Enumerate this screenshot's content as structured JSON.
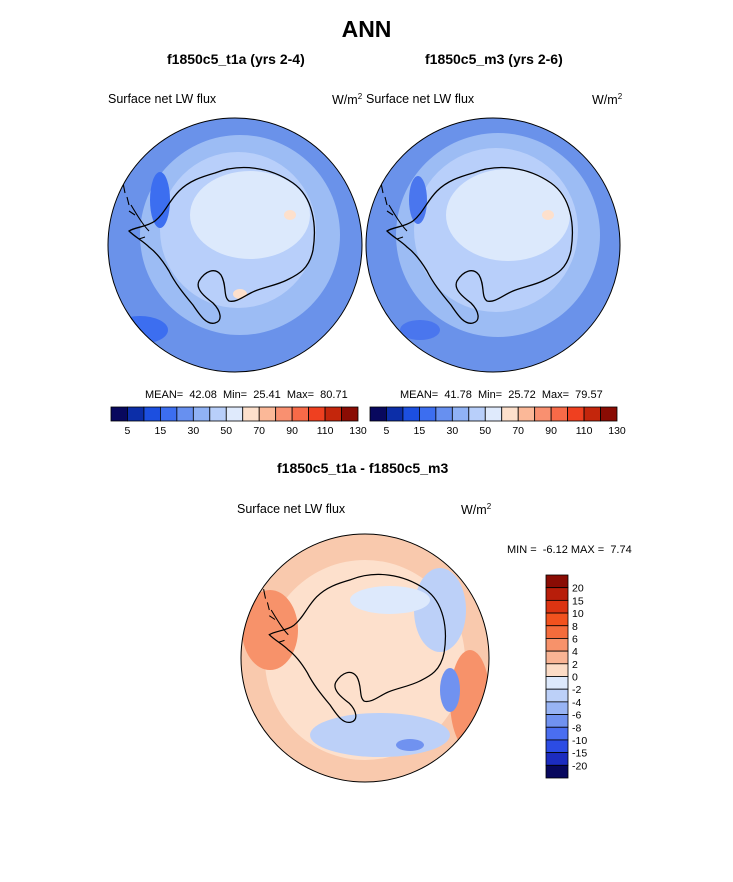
{
  "main_title": "ANN",
  "panels": [
    {
      "title": "f1850c5_t1a (yrs 2-4)",
      "variable": "Surface net LW flux",
      "units_base": "W/m",
      "units_exp": "2",
      "stats": "MEAN=  42.08  Min=  25.41  Max=  80.71"
    },
    {
      "title": "f1850c5_m3 (yrs 2-6)",
      "variable": "Surface net LW flux",
      "units_base": "W/m",
      "units_exp": "2",
      "stats": "MEAN=  41.78  Min=  25.72  Max=  79.57"
    }
  ],
  "diff": {
    "title": "f1850c5_t1a - f1850c5_m3",
    "variable": "Surface net LW flux",
    "units_base": "W/m",
    "units_exp": "2",
    "stats": "MIN =  -6.12 MAX =  7.74"
  },
  "colorbar_h": {
    "colors": [
      "#08085e",
      "#0c2ea8",
      "#1c4fe0",
      "#3c6ef0",
      "#6790f0",
      "#90b2f5",
      "#b8cffa",
      "#dfeafc",
      "#fde0cc",
      "#fbb898",
      "#f99070",
      "#f76a48",
      "#ef4020",
      "#c4260c",
      "#8a0c04"
    ],
    "ticks": [
      "5",
      "15",
      "30",
      "50",
      "70",
      "90",
      "110",
      "130"
    ]
  },
  "colorbar_v": {
    "colors": [
      "#8a0c04",
      "#b81e0a",
      "#dc3412",
      "#f2521e",
      "#f46c3c",
      "#f7926a",
      "#f9b494",
      "#fcdcc6",
      "#dde9fc",
      "#bcd0f8",
      "#98b4f4",
      "#7092f0",
      "#4a6ef0",
      "#2c4ce4",
      "#1c2cc0",
      "#08085e"
    ],
    "ticks": [
      "20",
      "15",
      "10",
      "8",
      "6",
      "4",
      "2",
      "0",
      "-2",
      "-4",
      "-6",
      "-8",
      "-10",
      "-15",
      "-20"
    ]
  }
}
